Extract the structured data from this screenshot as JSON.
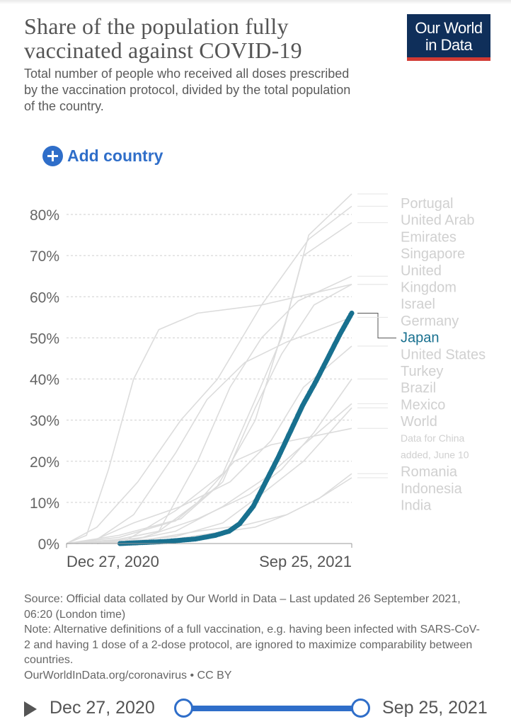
{
  "header": {
    "title": "Share of the population fully vaccinated against COVID-19",
    "subtitle": "Total number of people who received all doses prescribed by the vaccination protocol, divided by the total population of the country.",
    "logo_line1": "Our World",
    "logo_line2": "in Data",
    "add_country_label": "Add country"
  },
  "chart_data": {
    "type": "line",
    "ylim": [
      0,
      80
    ],
    "y_ticks": [
      "0%",
      "10%",
      "20%",
      "30%",
      "40%",
      "50%",
      "60%",
      "70%",
      "80%"
    ],
    "x_ticks": [
      "Dec 27, 2020",
      "Sep 25, 2021"
    ],
    "x_range": [
      "2020-12-27",
      "2021-09-25"
    ],
    "grid": "horizontal-dashed",
    "legend_labels": [
      "Portugal",
      "United Arab",
      "Emirates",
      "Singapore",
      "United",
      "Kingdom",
      "Israel",
      "Germany",
      "Japan",
      "United States",
      "Turkey",
      "Brazil",
      "Mexico",
      "World",
      "Data for China",
      "added, June 10",
      "Romania",
      "Indonesia",
      "India"
    ],
    "highlight": {
      "name": "Japan",
      "color": "#18708f"
    },
    "series": [
      {
        "name": "Japan",
        "x": [
          "2021-02-16",
          "2021-03-06",
          "2021-04-01",
          "2021-04-29",
          "2021-05-18",
          "2021-05-31",
          "2021-06-10",
          "2021-06-23",
          "2021-07-05",
          "2021-07-17",
          "2021-07-29",
          "2021-08-09",
          "2021-08-22",
          "2021-09-05",
          "2021-09-14",
          "2021-09-25"
        ],
        "values": [
          0.0,
          0.2,
          0.5,
          1.1,
          2.0,
          3.0,
          4.8,
          9.0,
          15.0,
          21.0,
          27.5,
          33.5,
          39.5,
          46.5,
          51.0,
          56.0
        ]
      },
      {
        "name": "Portugal",
        "x": [
          "2020-12-27",
          "2021-02-15",
          "2021-04-10",
          "2021-05-20",
          "2021-06-25",
          "2021-07-25",
          "2021-08-15",
          "2021-09-25"
        ],
        "values": [
          0,
          1.5,
          5.5,
          14,
          30,
          55,
          75,
          85
        ]
      },
      {
        "name": "United Arab Emirates",
        "x": [
          "2020-12-27",
          "2021-01-25",
          "2021-03-05",
          "2021-04-15",
          "2021-05-20",
          "2021-07-01",
          "2021-08-15",
          "2021-09-25"
        ],
        "values": [
          0,
          4,
          15,
          30,
          40,
          58,
          74,
          82
        ]
      },
      {
        "name": "Singapore",
        "x": [
          "2021-01-05",
          "2021-02-20",
          "2021-04-10",
          "2021-05-25",
          "2021-06-25",
          "2021-07-20",
          "2021-08-10",
          "2021-09-25"
        ],
        "values": [
          0,
          0.5,
          8,
          17,
          35,
          50,
          70,
          78
        ]
      },
      {
        "name": "United Kingdom",
        "x": [
          "2020-12-27",
          "2021-02-10",
          "2021-03-25",
          "2021-05-01",
          "2021-06-01",
          "2021-07-01",
          "2021-08-05",
          "2021-09-25"
        ],
        "values": [
          0,
          0.8,
          3,
          20,
          38,
          50,
          59,
          65
        ]
      },
      {
        "name": "Israel",
        "x": [
          "2020-12-27",
          "2021-01-15",
          "2021-02-05",
          "2021-03-01",
          "2021-03-25",
          "2021-05-01",
          "2021-07-01",
          "2021-09-25"
        ],
        "values": [
          0,
          2,
          18,
          40,
          52,
          56,
          58,
          63
        ]
      },
      {
        "name": "Germany",
        "x": [
          "2020-12-27",
          "2021-02-15",
          "2021-04-15",
          "2021-05-25",
          "2021-06-25",
          "2021-07-20",
          "2021-08-20",
          "2021-09-25"
        ],
        "values": [
          0,
          2,
          6,
          15,
          33,
          46,
          58,
          63
        ]
      },
      {
        "name": "United States",
        "x": [
          "2020-12-27",
          "2021-01-25",
          "2021-03-01",
          "2021-04-10",
          "2021-05-10",
          "2021-06-15",
          "2021-07-25",
          "2021-09-25"
        ],
        "values": [
          0,
          1,
          7,
          22,
          35,
          44,
          49,
          55
        ]
      },
      {
        "name": "Turkey",
        "x": [
          "2021-01-15",
          "2021-03-01",
          "2021-04-15",
          "2021-06-01",
          "2021-07-10",
          "2021-08-10",
          "2021-09-25"
        ],
        "values": [
          0,
          5,
          9,
          15,
          25,
          38,
          48
        ]
      },
      {
        "name": "Brazil",
        "x": [
          "2021-01-20",
          "2021-03-10",
          "2021-05-01",
          "2021-06-20",
          "2021-07-20",
          "2021-08-20",
          "2021-09-25"
        ],
        "values": [
          0,
          1.5,
          6,
          12,
          18,
          27,
          40
        ]
      },
      {
        "name": "Mexico",
        "x": [
          "2020-12-27",
          "2021-02-20",
          "2021-04-10",
          "2021-05-25",
          "2021-07-05",
          "2021-08-10",
          "2021-09-25"
        ],
        "values": [
          0,
          0.5,
          3,
          9,
          16,
          24,
          34
        ]
      },
      {
        "name": "World",
        "x": [
          "2020-12-27",
          "2021-02-15",
          "2021-04-10",
          "2021-05-25",
          "2021-07-01",
          "2021-08-10",
          "2021-09-25"
        ],
        "values": [
          0,
          0.3,
          1.7,
          5,
          12,
          20,
          33
        ]
      },
      {
        "name": "Romania",
        "x": [
          "2020-12-27",
          "2021-02-15",
          "2021-03-25",
          "2021-05-01",
          "2021-06-05",
          "2021-07-10",
          "2021-09-25"
        ],
        "values": [
          0,
          1,
          3,
          10,
          20,
          24,
          28
        ]
      },
      {
        "name": "Indonesia",
        "x": [
          "2021-01-25",
          "2021-03-15",
          "2021-05-01",
          "2021-06-15",
          "2021-07-25",
          "2021-08-25",
          "2021-09-25"
        ],
        "values": [
          0,
          1,
          3,
          4.5,
          7,
          11,
          17
        ]
      },
      {
        "name": "India",
        "x": [
          "2021-01-25",
          "2021-03-25",
          "2021-05-15",
          "2021-06-25",
          "2021-07-25",
          "2021-08-25",
          "2021-09-25"
        ],
        "values": [
          0,
          0.5,
          2.5,
          4,
          7,
          11,
          16
        ]
      }
    ]
  },
  "footer": {
    "source": "Source: Official data collated by Our World in Data – Last updated 26 September 2021, 06:20 (London time)",
    "note": "Note: Alternative definitions of a full vaccination, e.g. having been infected with SARS-CoV-2 and having 1 dose of a 2-dose protocol, are ignored to maximize comparability between countries.",
    "credit": "OurWorldInData.org/coronavirus • CC BY"
  },
  "timeline": {
    "start_label": "Dec 27, 2020",
    "end_label": "Sep 25, 2021"
  },
  "colors": {
    "highlight": "#18708f",
    "background_lines": "#dcdcdc",
    "accent": "#2f6ec9",
    "logo_bg": "#0f2f5a",
    "logo_bar": "#d23a33"
  }
}
